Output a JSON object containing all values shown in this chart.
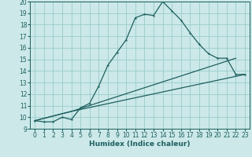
{
  "title": "",
  "xlabel": "Humidex (Indice chaleur)",
  "bg_color": "#cce8e8",
  "line_color": "#1e5f5f",
  "grid_color": "#99cccc",
  "xlim": [
    -0.5,
    23.5
  ],
  "ylim": [
    9,
    20
  ],
  "xticks": [
    0,
    1,
    2,
    3,
    4,
    5,
    6,
    7,
    8,
    9,
    10,
    11,
    12,
    13,
    14,
    15,
    16,
    17,
    18,
    19,
    20,
    21,
    22,
    23
  ],
  "yticks": [
    9,
    10,
    11,
    12,
    13,
    14,
    15,
    16,
    17,
    18,
    19,
    20
  ],
  "line1_x": [
    0,
    1,
    2,
    3,
    4,
    5,
    6,
    7,
    8,
    9,
    10,
    11,
    12,
    13,
    14,
    15,
    16,
    17,
    18,
    19,
    20,
    21,
    22,
    23
  ],
  "line1_y": [
    9.7,
    9.6,
    9.6,
    10.0,
    9.8,
    10.8,
    11.2,
    12.7,
    14.5,
    15.6,
    16.7,
    18.6,
    18.9,
    18.8,
    20.0,
    19.2,
    18.4,
    17.3,
    16.3,
    15.5,
    15.1,
    15.1,
    13.7,
    13.7
  ],
  "line2_x": [
    0,
    4,
    22
  ],
  "line2_y": [
    9.7,
    10.5,
    15.1
  ],
  "line3_x": [
    0,
    4,
    23
  ],
  "line3_y": [
    9.7,
    10.5,
    13.7
  ],
  "xlabel_fontsize": 6.5,
  "tick_fontsize": 5.5,
  "lw": 0.9,
  "marker_size": 2.8
}
